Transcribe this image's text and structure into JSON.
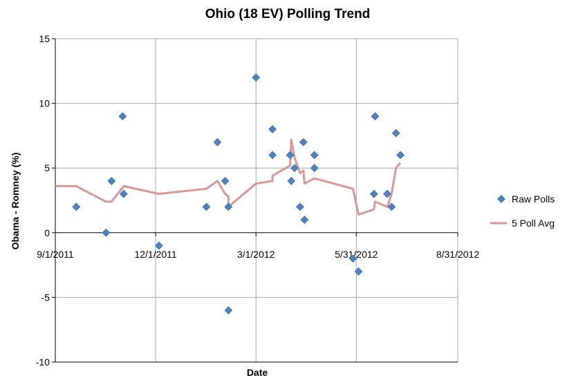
{
  "chart_data": {
    "type": "scatter",
    "title": "Ohio (18 EV) Polling Trend",
    "xlabel": "Date",
    "ylabel": "Obama - Romney (%)",
    "xlim": [
      "2011-09-01",
      "2012-08-31"
    ],
    "ylim": [
      -10,
      15
    ],
    "x_ticks": [
      "2011-09-01",
      "2011-12-01",
      "2012-03-01",
      "2012-05-31",
      "2012-08-31"
    ],
    "x_tick_labels": [
      "9/1/2011",
      "12/1/2011",
      "3/1/2012",
      "5/31/2012",
      "8/31/2012"
    ],
    "y_ticks": [
      15,
      10,
      5,
      0,
      -5,
      -10
    ],
    "y_tick_labels": [
      "15",
      "10",
      "5",
      "0",
      "-5",
      "-10"
    ],
    "grid": true,
    "legend_position": "right",
    "colors": {
      "raw": "#4f81bd",
      "avg": "#d99795"
    },
    "series": [
      {
        "name": "Raw Polls",
        "kind": "scatter",
        "marker": "diamond",
        "points": [
          {
            "x": "2011-09-20",
            "y": 2
          },
          {
            "x": "2011-10-17",
            "y": 0
          },
          {
            "x": "2011-10-22",
            "y": 4
          },
          {
            "x": "2011-11-01",
            "y": 9
          },
          {
            "x": "2011-11-02",
            "y": 3
          },
          {
            "x": "2011-12-04",
            "y": -1
          },
          {
            "x": "2012-01-16",
            "y": 2
          },
          {
            "x": "2012-01-26",
            "y": 7
          },
          {
            "x": "2012-02-02",
            "y": 4
          },
          {
            "x": "2012-02-05",
            "y": 2
          },
          {
            "x": "2012-02-05",
            "y": -6
          },
          {
            "x": "2012-03-01",
            "y": 12
          },
          {
            "x": "2012-03-16",
            "y": 8
          },
          {
            "x": "2012-03-16",
            "y": 6
          },
          {
            "x": "2012-04-01",
            "y": 6
          },
          {
            "x": "2012-04-02",
            "y": 4
          },
          {
            "x": "2012-04-05",
            "y": 5
          },
          {
            "x": "2012-04-10",
            "y": 2
          },
          {
            "x": "2012-04-13",
            "y": 7
          },
          {
            "x": "2012-04-14",
            "y": 1
          },
          {
            "x": "2012-04-23",
            "y": 6
          },
          {
            "x": "2012-04-23",
            "y": 5
          },
          {
            "x": "2012-05-28",
            "y": -2
          },
          {
            "x": "2012-06-02",
            "y": -3
          },
          {
            "x": "2012-06-16",
            "y": 3
          },
          {
            "x": "2012-06-17",
            "y": 9
          },
          {
            "x": "2012-06-28",
            "y": 3
          },
          {
            "x": "2012-07-02",
            "y": 2
          },
          {
            "x": "2012-07-06",
            "y": 7.7
          },
          {
            "x": "2012-07-10",
            "y": 6
          }
        ]
      },
      {
        "name": "5 Poll Avg",
        "kind": "line",
        "points": [
          {
            "x": "2011-09-01",
            "y": 3.6
          },
          {
            "x": "2011-09-20",
            "y": 3.6
          },
          {
            "x": "2011-10-17",
            "y": 2.4
          },
          {
            "x": "2011-10-22",
            "y": 2.4
          },
          {
            "x": "2011-11-02",
            "y": 3.6
          },
          {
            "x": "2011-12-04",
            "y": 3.0
          },
          {
            "x": "2012-01-16",
            "y": 3.4
          },
          {
            "x": "2012-01-26",
            "y": 4.0
          },
          {
            "x": "2012-02-02",
            "y": 3.0
          },
          {
            "x": "2012-02-05",
            "y": 2.8
          },
          {
            "x": "2012-02-05",
            "y": 2.0
          },
          {
            "x": "2012-03-01",
            "y": 3.8
          },
          {
            "x": "2012-03-16",
            "y": 4.0
          },
          {
            "x": "2012-03-16",
            "y": 4.4
          },
          {
            "x": "2012-04-01",
            "y": 5.2
          },
          {
            "x": "2012-04-02",
            "y": 7.2
          },
          {
            "x": "2012-04-05",
            "y": 5.8
          },
          {
            "x": "2012-04-10",
            "y": 4.6
          },
          {
            "x": "2012-04-13",
            "y": 4.8
          },
          {
            "x": "2012-04-14",
            "y": 3.8
          },
          {
            "x": "2012-04-23",
            "y": 4.2
          },
          {
            "x": "2012-05-28",
            "y": 3.4
          },
          {
            "x": "2012-06-02",
            "y": 1.4
          },
          {
            "x": "2012-06-16",
            "y": 1.8
          },
          {
            "x": "2012-06-17",
            "y": 2.4
          },
          {
            "x": "2012-06-28",
            "y": 2.0
          },
          {
            "x": "2012-07-02",
            "y": 3.0
          },
          {
            "x": "2012-07-06",
            "y": 5.0
          },
          {
            "x": "2012-07-10",
            "y": 5.4
          }
        ]
      }
    ]
  }
}
